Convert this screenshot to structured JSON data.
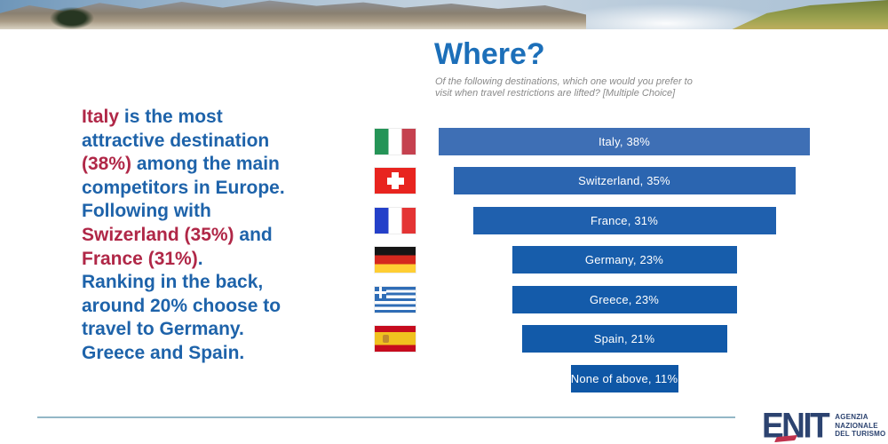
{
  "header": {
    "title": "Where?",
    "subtitle_line1": "Of the following destinations, which one would you prefer to",
    "subtitle_line2": "visit when travel restrictions are lifted? [Multiple Choice]"
  },
  "commentary": {
    "l1_red": "Italy",
    "l1_blue": " is the most",
    "l2": "attractive destination",
    "l3_red": "(38%)",
    "l3_blue": " among the main",
    "l4": "competitors in Europe.",
    "l5": "Following with",
    "l6_red": "Swizerland (35%)",
    "l6_blue": " and",
    "l7_red": "France (31%)",
    "l7_blue": ".",
    "l8": "Ranking in the back,",
    "l9": "around 20% choose to",
    "l10": "travel to Germany.",
    "l11": "Greece and Spain."
  },
  "chart_data": {
    "type": "bar",
    "layout": "horizontal centered funnel, value labels inside bars, country flags as category icons, no axes or gridlines",
    "title": "Where?",
    "categories": [
      "Italy",
      "Switzerland",
      "France",
      "Germany",
      "Greece",
      "Spain",
      "None of above"
    ],
    "values": [
      38,
      35,
      31,
      23,
      23,
      21,
      11
    ],
    "unit": "%",
    "max_value": 38,
    "labels": [
      "Italy, 38%",
      "Switzerland, 35%",
      "France, 31%",
      "Germany, 23%",
      "Greece, 23%",
      "Spain, 21%",
      "None of above, 11%"
    ],
    "bar_colors": [
      "#3e6fb5",
      "#2b65b0",
      "#1f60ae",
      "#175dab",
      "#145baa",
      "#125aa9",
      "#0f57a6"
    ],
    "label_color": "#ffffff",
    "flag_icons": [
      "Italy",
      "Switzerland",
      "France",
      "Germany",
      "Greece",
      "Spain"
    ]
  },
  "colors": {
    "title_blue": "#1c6fb9",
    "body_blue": "#1e63aa",
    "accent_red": "#b02747",
    "subtitle_gray": "#8a8a8a",
    "divider": "#93b7c6",
    "logo_navy": "#2c4370",
    "logo_red": "#c0334e"
  },
  "logo": {
    "name": "ENIT",
    "tagline": [
      "AGENZIA",
      "NAZIONALE",
      "DEL TURISMO"
    ]
  }
}
